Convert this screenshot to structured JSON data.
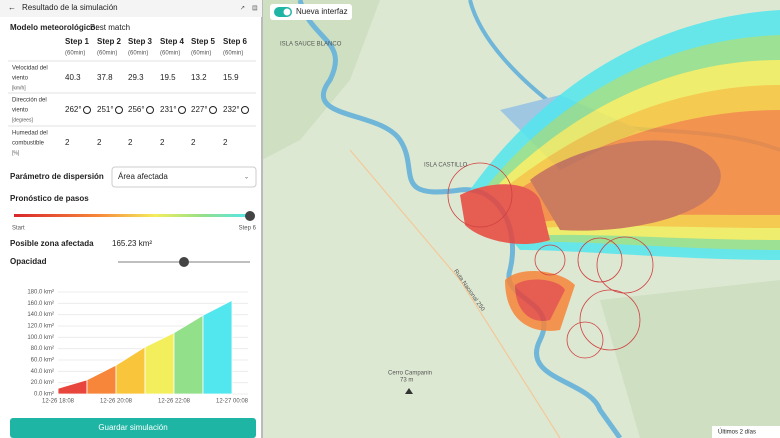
{
  "panel": {
    "title": "Resultado de la simulación",
    "model_label": "Modelo meteorológico:",
    "model_value": "Best match",
    "table": {
      "columns": [
        {
          "step": "Step 1",
          "unit": "(60min)"
        },
        {
          "step": "Step 2",
          "unit": "(60min)"
        },
        {
          "step": "Step 3",
          "unit": "(60min)"
        },
        {
          "step": "Step 4",
          "unit": "(60min)"
        },
        {
          "step": "Step 5",
          "unit": "(60min)"
        },
        {
          "step": "Step 6",
          "unit": "(60min)"
        }
      ],
      "rows": [
        {
          "label": [
            "Velocidad del",
            "viento"
          ],
          "unit": "[km/h]",
          "cells": [
            "40.3",
            "37.8",
            "29.3",
            "19.5",
            "13.2",
            "15.9"
          ]
        },
        {
          "label": [
            "Dirección del",
            "viento"
          ],
          "unit": "[degrees]",
          "cells": [
            "262°",
            "251°",
            "256°",
            "231°",
            "227°",
            "232°"
          ]
        },
        {
          "label": [
            "Humedad del",
            "combustible"
          ],
          "unit": "[%]",
          "cells": [
            "2",
            "2",
            "2",
            "2",
            "2",
            "2"
          ]
        }
      ]
    },
    "dispersion": {
      "label": "Parámetro de dispersión",
      "selected": "Área afectada"
    },
    "forecast": {
      "label": "Pronóstico de pasos",
      "start": "Start",
      "end": "Step 6"
    },
    "affected": {
      "label": "Posible zona afectada",
      "value": "165.23 km²"
    },
    "opacity": {
      "label": "Opacidad"
    },
    "chart": {
      "type": "area",
      "categories": [
        "12-26 18:08",
        null,
        "12-26 20:08",
        null,
        "12-26 22:08",
        null,
        "12-27 00:08"
      ],
      "values": [
        10,
        25,
        51,
        83,
        108,
        139,
        165.23
      ],
      "colors": [
        "#e8453c",
        "#f7853a",
        "#f9c53b",
        "#f3ee5c",
        "#93e08a",
        "#52e6ee"
      ],
      "ylim": [
        0,
        180
      ],
      "yticks": [
        {
          "value": 0,
          "label": "0.0 km²"
        },
        {
          "value": 20,
          "label": "20.0 km²"
        },
        {
          "value": 40,
          "label": "40.0 km²"
        },
        {
          "value": 60,
          "label": "60.0 km²"
        },
        {
          "value": 80,
          "label": "80.0 km²"
        },
        {
          "value": 100,
          "label": "100.0 km²"
        },
        {
          "value": 120,
          "label": "120.0 km²"
        },
        {
          "value": 140,
          "label": "140.0 km²"
        },
        {
          "value": 160,
          "label": "160.0 km²"
        },
        {
          "value": 180,
          "label": "180.0 km²"
        }
      ]
    },
    "save_button": "Guardar simulación"
  },
  "map": {
    "toggle": "Nueva interfaz",
    "badge": "Últimos 2 días",
    "labels": [
      "ISLA SAUCE BLANCO",
      "ISLA CASTILLO",
      "Ruta Nacional 250",
      "Cerro Campanin",
      "73 m"
    ]
  }
}
